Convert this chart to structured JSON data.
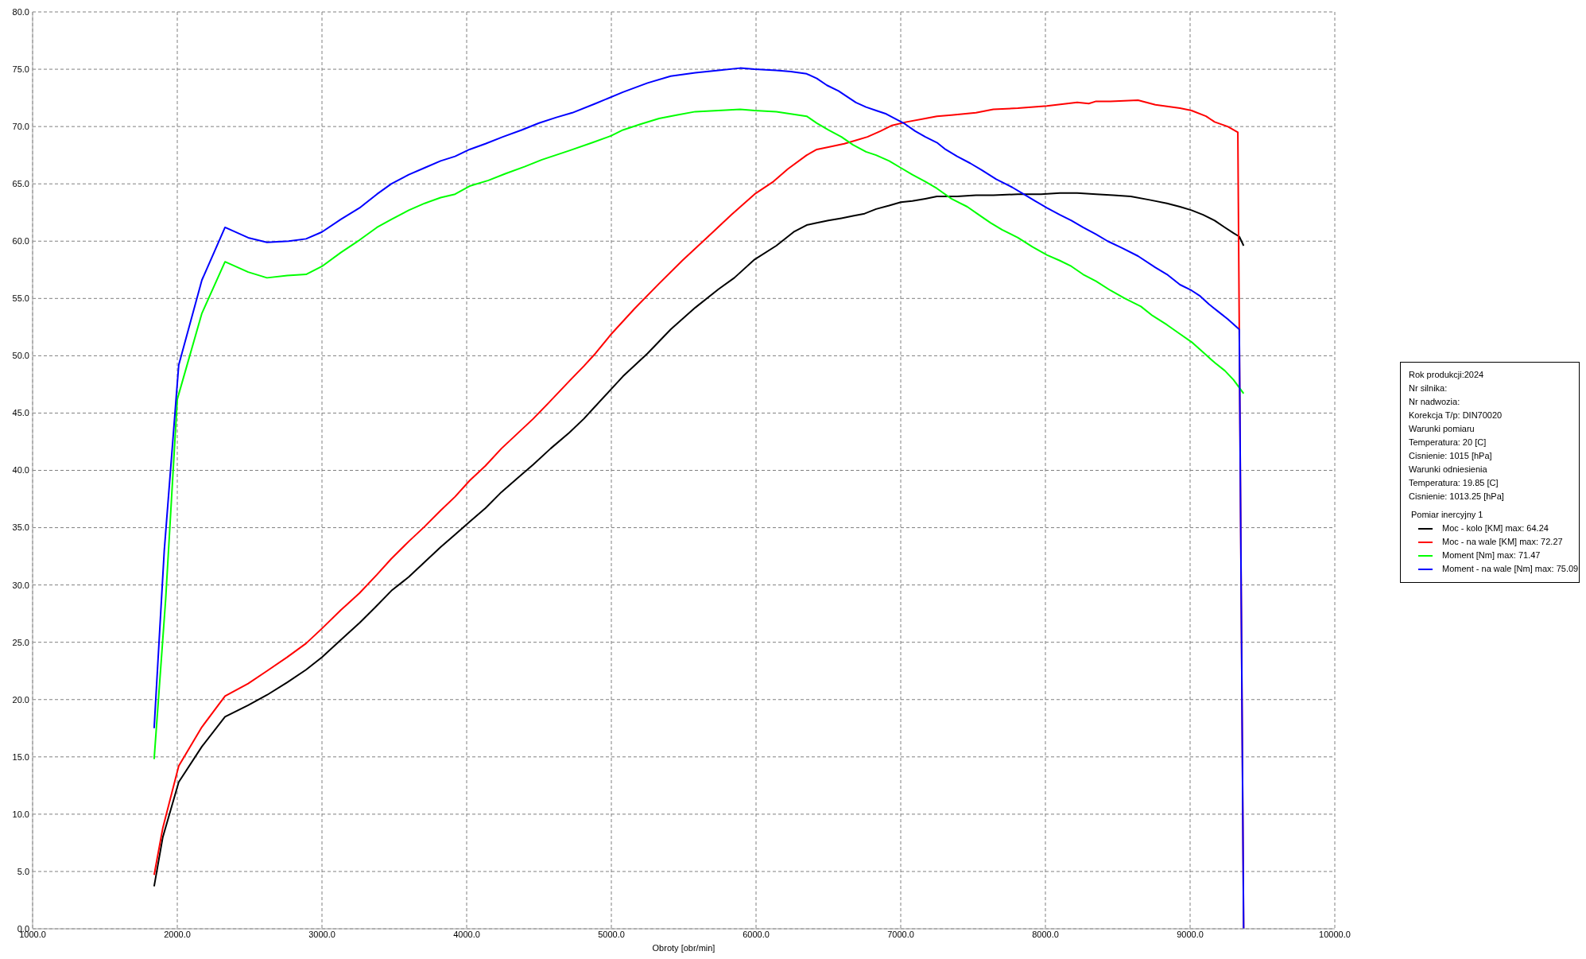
{
  "chart_data": {
    "type": "line",
    "xlabel": "Obroty [obr/min]",
    "xlim": [
      1000,
      10000
    ],
    "xticks": [
      {
        "value": 1000,
        "label": "1000.0"
      },
      {
        "value": 2000,
        "label": "2000.0"
      },
      {
        "value": 3000,
        "label": "3000.0"
      },
      {
        "value": 4000,
        "label": "4000.0"
      },
      {
        "value": 5000,
        "label": "5000.0"
      },
      {
        "value": 6000,
        "label": "6000.0"
      },
      {
        "value": 7000,
        "label": "7000.0"
      },
      {
        "value": 8000,
        "label": "8000.0"
      },
      {
        "value": 9000,
        "label": "9000.0"
      },
      {
        "value": 10000,
        "label": "10000.0"
      }
    ],
    "ylim": [
      0,
      80
    ],
    "yticks": [
      {
        "value": 0,
        "label": "0.0"
      },
      {
        "value": 5,
        "label": "5.0"
      },
      {
        "value": 10,
        "label": "10.0"
      },
      {
        "value": 15,
        "label": "15.0"
      },
      {
        "value": 20,
        "label": "20.0"
      },
      {
        "value": 25,
        "label": "25.0"
      },
      {
        "value": 30,
        "label": "30.0"
      },
      {
        "value": 35,
        "label": "35.0"
      },
      {
        "value": 40,
        "label": "40.0"
      },
      {
        "value": 45,
        "label": "45.0"
      },
      {
        "value": 50,
        "label": "50.0"
      },
      {
        "value": 55,
        "label": "55.0"
      },
      {
        "value": 60,
        "label": "60.0"
      },
      {
        "value": 65,
        "label": "65.0"
      },
      {
        "value": 70,
        "label": "70.0"
      },
      {
        "value": 75,
        "label": "75.0"
      },
      {
        "value": 80,
        "label": "80.0"
      }
    ],
    "grid": true,
    "legend": "right",
    "legend_title": "Pomiar inercyjny 1",
    "annotations": [
      "Rok produkcji:2024",
      "Nr silnika:",
      "Nr nadwozia:",
      "Korekcja T/p: DIN70020",
      "Warunki pomiaru",
      "Temperatura: 20 [C]",
      "Cisnienie: 1015 [hPa]",
      "Warunki odniesienia",
      "Temperatura: 19.85 [C]",
      "Cisnienie: 1013.25 [hPa]"
    ],
    "series": [
      {
        "name": "Moc - kolo [KM] max: 64.24",
        "color": "#000000",
        "x": [
          1840,
          1900,
          2010,
          2170,
          2330,
          2490,
          2620,
          2760,
          2890,
          3000,
          3130,
          3260,
          3380,
          3480,
          3600,
          3710,
          3820,
          3920,
          4020,
          4130,
          4240,
          4350,
          4460,
          4580,
          4710,
          4810,
          4890,
          5000,
          5080,
          5250,
          5410,
          5580,
          5740,
          5850,
          5990,
          6140,
          6260,
          6350,
          6420,
          6500,
          6590,
          6670,
          6750,
          6830,
          6920,
          7000,
          7080,
          7170,
          7250,
          7390,
          7520,
          7640,
          7810,
          7970,
          8100,
          8220,
          8350,
          8470,
          8590,
          8720,
          8840,
          8930,
          9010,
          9090,
          9170,
          9240,
          9300,
          9340,
          9370
        ],
        "values": [
          3.7,
          8.0,
          12.8,
          15.9,
          18.5,
          19.5,
          20.4,
          21.5,
          22.6,
          23.7,
          25.2,
          26.7,
          28.2,
          29.5,
          30.7,
          32.0,
          33.3,
          34.4,
          35.5,
          36.7,
          38.1,
          39.3,
          40.5,
          41.9,
          43.3,
          44.5,
          45.6,
          47.1,
          48.2,
          50.2,
          52.3,
          54.2,
          55.8,
          56.8,
          58.4,
          59.6,
          60.8,
          61.4,
          61.6,
          61.8,
          62.0,
          62.2,
          62.4,
          62.8,
          63.1,
          63.4,
          63.5,
          63.7,
          63.9,
          63.9,
          64.0,
          64.0,
          64.1,
          64.1,
          64.2,
          64.2,
          64.1,
          64.0,
          63.9,
          63.6,
          63.3,
          63.0,
          62.7,
          62.3,
          61.8,
          61.2,
          60.7,
          60.4,
          59.6
        ]
      },
      {
        "name": "Moc - na wale [KM] max: 72.27",
        "color": "#ff0000",
        "x": [
          1840,
          1900,
          2010,
          2170,
          2330,
          2490,
          2620,
          2760,
          2890,
          3000,
          3130,
          3260,
          3380,
          3480,
          3600,
          3710,
          3820,
          3920,
          4020,
          4130,
          4240,
          4350,
          4460,
          4560,
          4710,
          4810,
          4890,
          5000,
          5160,
          5330,
          5490,
          5660,
          5830,
          5990,
          6120,
          6220,
          6350,
          6420,
          6500,
          6610,
          6690,
          6770,
          6860,
          6940,
          7040,
          7170,
          7250,
          7350,
          7520,
          7640,
          7810,
          8010,
          8220,
          8300,
          8350,
          8450,
          8640,
          8760,
          8930,
          9010,
          9110,
          9170,
          9260,
          9330,
          9370
        ],
        "values": [
          4.7,
          8.8,
          14.2,
          17.6,
          20.3,
          21.4,
          22.5,
          23.7,
          24.9,
          26.2,
          27.8,
          29.3,
          30.9,
          32.3,
          33.8,
          35.1,
          36.5,
          37.7,
          39.1,
          40.4,
          41.9,
          43.2,
          44.5,
          45.8,
          47.8,
          49.1,
          50.2,
          51.9,
          54.1,
          56.3,
          58.3,
          60.3,
          62.3,
          64.1,
          65.2,
          66.3,
          67.5,
          68.0,
          68.2,
          68.5,
          68.8,
          69.1,
          69.6,
          70.1,
          70.4,
          70.7,
          70.9,
          71.0,
          71.2,
          71.5,
          71.6,
          71.8,
          72.1,
          72.0,
          72.2,
          72.2,
          72.3,
          71.9,
          71.6,
          71.4,
          70.9,
          70.4,
          70.0,
          69.5,
          0
        ]
      },
      {
        "name": "Moment [Nm] max: 71.47",
        "color": "#00ff00",
        "x": [
          1840,
          1920,
          2000,
          2170,
          2330,
          2490,
          2620,
          2760,
          2890,
          3000,
          3130,
          3260,
          3380,
          3480,
          3600,
          3710,
          3820,
          3920,
          4020,
          4150,
          4270,
          4400,
          4520,
          4710,
          4870,
          5000,
          5080,
          5200,
          5330,
          5450,
          5580,
          5740,
          5890,
          5990,
          6140,
          6350,
          6420,
          6500,
          6590,
          6670,
          6760,
          6830,
          6920,
          7000,
          7080,
          7170,
          7250,
          7350,
          7460,
          7540,
          7620,
          7700,
          7810,
          7910,
          8010,
          8100,
          8180,
          8260,
          8350,
          8450,
          8550,
          8660,
          8740,
          8840,
          8930,
          9010,
          9090,
          9170,
          9240,
          9300,
          9370
        ],
        "values": [
          14.8,
          28.8,
          46.2,
          53.7,
          58.2,
          57.3,
          56.8,
          57.0,
          57.1,
          57.8,
          59.0,
          60.1,
          61.2,
          61.9,
          62.7,
          63.3,
          63.8,
          64.1,
          64.8,
          65.3,
          65.9,
          66.5,
          67.1,
          67.9,
          68.6,
          69.2,
          69.7,
          70.2,
          70.7,
          71.0,
          71.3,
          71.4,
          71.5,
          71.4,
          71.3,
          70.9,
          70.3,
          69.7,
          69.1,
          68.4,
          67.8,
          67.5,
          67.0,
          66.4,
          65.8,
          65.2,
          64.6,
          63.7,
          63.0,
          62.3,
          61.6,
          61.0,
          60.3,
          59.5,
          58.8,
          58.3,
          57.8,
          57.1,
          56.5,
          55.7,
          55.0,
          54.3,
          53.5,
          52.7,
          51.9,
          51.2,
          50.3,
          49.4,
          48.7,
          47.9,
          46.7
        ]
      },
      {
        "name": "Moment - na wale [Nm] max: 75.09",
        "color": "#0000ff",
        "x": [
          1840,
          1910,
          2010,
          2170,
          2330,
          2490,
          2620,
          2770,
          2890,
          3000,
          3130,
          3260,
          3380,
          3480,
          3600,
          3710,
          3820,
          3920,
          4020,
          4130,
          4250,
          4380,
          4500,
          4620,
          4730,
          4890,
          5080,
          5250,
          5410,
          5580,
          5740,
          5890,
          5990,
          6140,
          6240,
          6350,
          6420,
          6490,
          6570,
          6630,
          6690,
          6760,
          6830,
          6900,
          6960,
          7020,
          7100,
          7170,
          7250,
          7310,
          7390,
          7480,
          7560,
          7660,
          7770,
          7850,
          7930,
          8010,
          8100,
          8180,
          8260,
          8350,
          8430,
          8530,
          8640,
          8760,
          8840,
          8930,
          9010,
          9070,
          9130,
          9200,
          9260,
          9340,
          9370
        ],
        "values": [
          17.5,
          33.0,
          49.2,
          56.6,
          61.2,
          60.3,
          59.9,
          60.0,
          60.2,
          60.8,
          61.9,
          62.9,
          64.1,
          65.0,
          65.8,
          66.4,
          67.0,
          67.4,
          68.0,
          68.5,
          69.1,
          69.7,
          70.3,
          70.8,
          71.2,
          72.0,
          73.0,
          73.8,
          74.4,
          74.7,
          74.9,
          75.1,
          75.0,
          74.9,
          74.8,
          74.6,
          74.2,
          73.6,
          73.1,
          72.6,
          72.1,
          71.7,
          71.4,
          71.1,
          70.7,
          70.3,
          69.6,
          69.1,
          68.6,
          68.0,
          67.4,
          66.8,
          66.2,
          65.4,
          64.7,
          64.1,
          63.5,
          62.9,
          62.3,
          61.8,
          61.2,
          60.6,
          60.0,
          59.4,
          58.7,
          57.7,
          57.1,
          56.2,
          55.7,
          55.2,
          54.5,
          53.8,
          53.2,
          52.3,
          0
        ]
      }
    ]
  }
}
